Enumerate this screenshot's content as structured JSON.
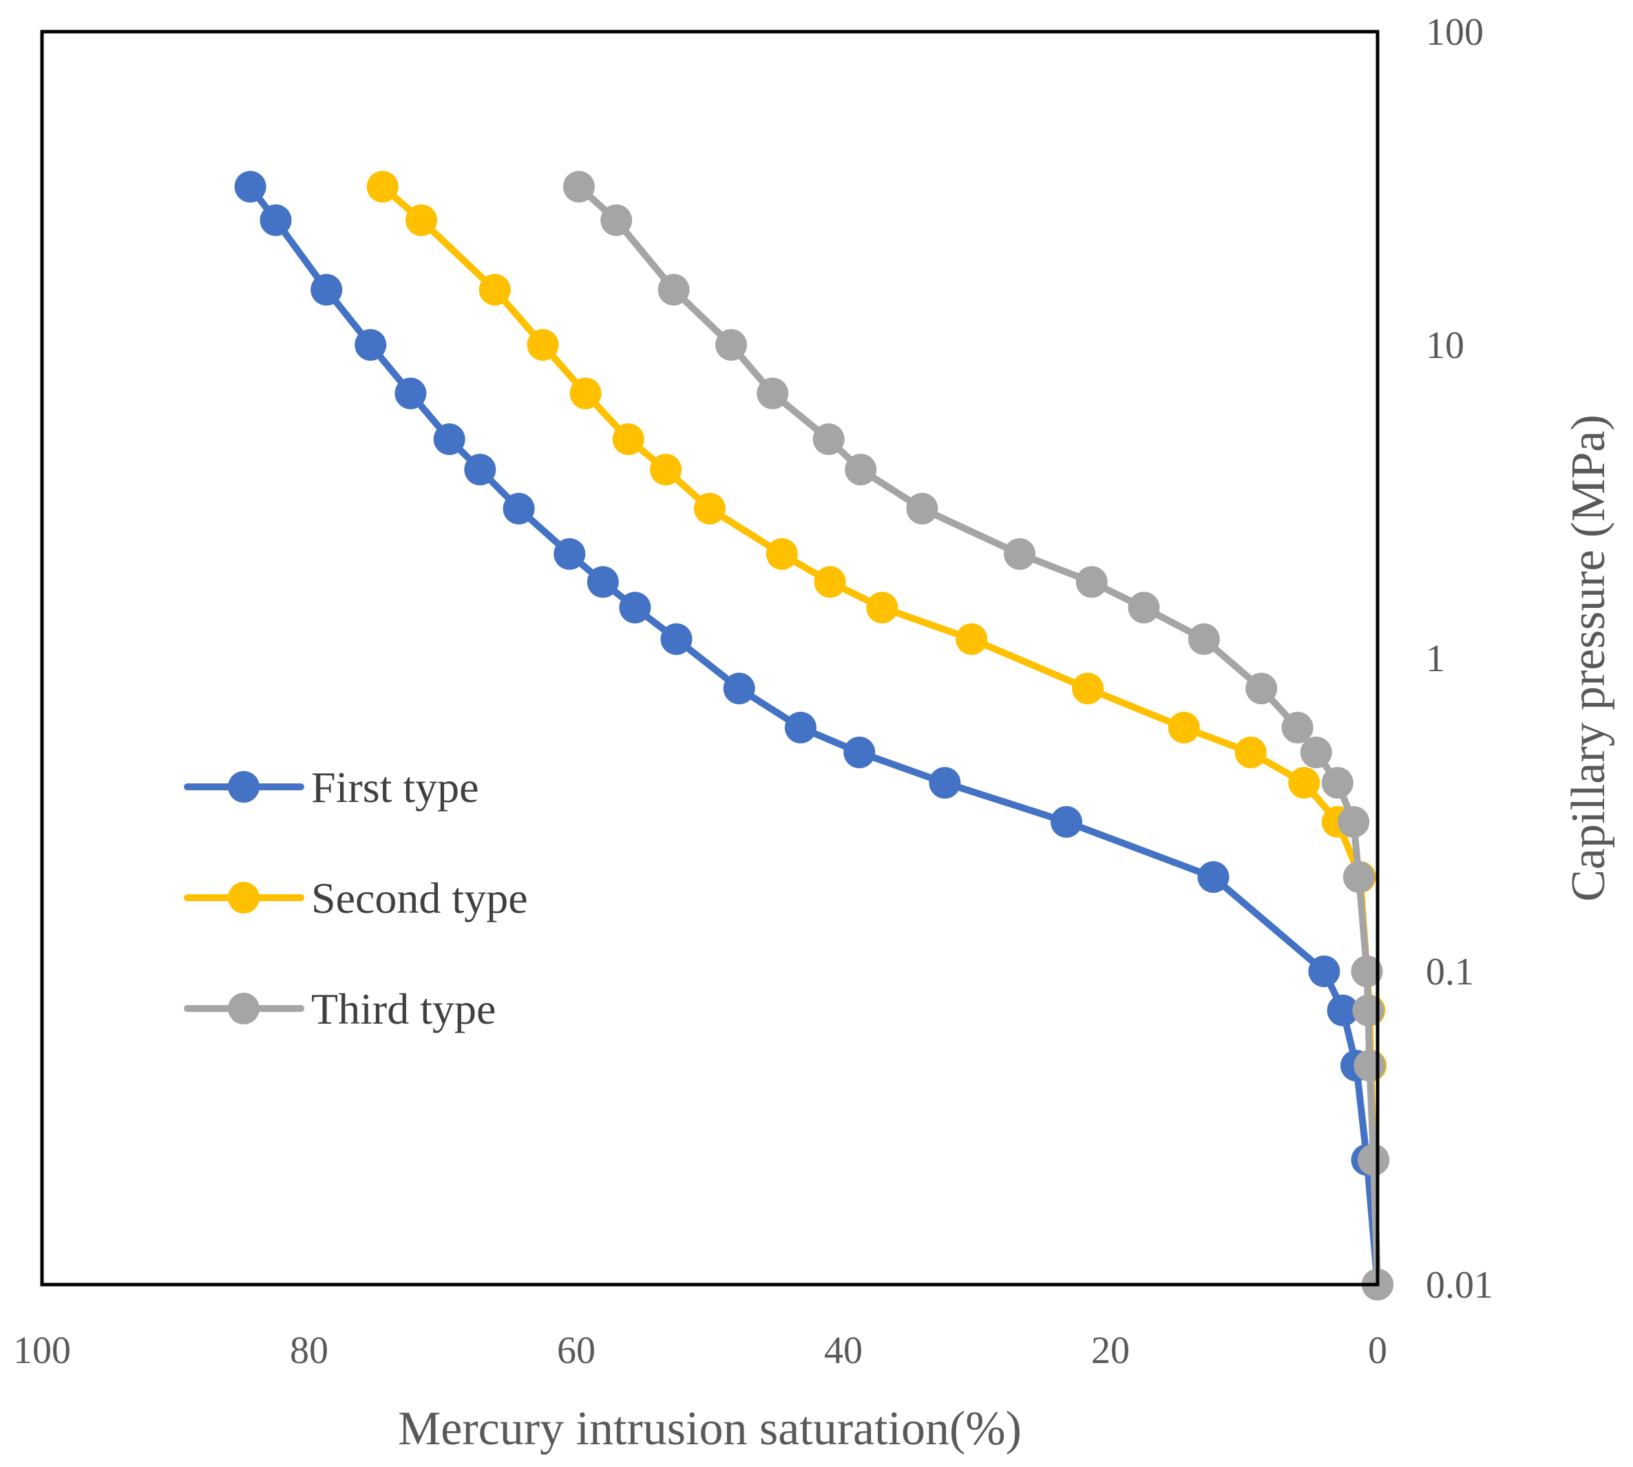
{
  "chart_data": {
    "type": "line",
    "xlabel": "Mercury intrusion saturation(%)",
    "ylabel": "Capillary pressure (MPa)",
    "x_reversed": true,
    "xlim": [
      0,
      100
    ],
    "y_scale": "log",
    "ylim": [
      0.01,
      100
    ],
    "x_ticks": [
      "100",
      "80",
      "60",
      "40",
      "20",
      "0"
    ],
    "y_ticks": [
      "0.01",
      "0.1",
      "1",
      "10",
      "100"
    ],
    "legend_position": "left-middle",
    "grid": false,
    "series": [
      {
        "name": "First type",
        "color": "#4472C4",
        "points": [
          [
            0,
            0.01
          ],
          [
            0.8,
            0.025
          ],
          [
            1.6,
            0.05
          ],
          [
            2.6,
            0.075
          ],
          [
            4,
            0.1
          ],
          [
            12.3,
            0.2
          ],
          [
            23.3,
            0.3
          ],
          [
            32.4,
            0.4
          ],
          [
            38.8,
            0.5
          ],
          [
            43.2,
            0.6
          ],
          [
            47.8,
            0.8
          ],
          [
            52.5,
            1.15
          ],
          [
            55.6,
            1.45
          ],
          [
            58.0,
            1.75
          ],
          [
            60.5,
            2.15
          ],
          [
            64.3,
            3.0
          ],
          [
            67.2,
            4.0
          ],
          [
            69.5,
            5.0
          ],
          [
            72.4,
            7.0
          ],
          [
            75.4,
            10.0
          ],
          [
            78.7,
            15.0
          ],
          [
            82.5,
            25.0
          ],
          [
            84.4,
            32.0
          ]
        ]
      },
      {
        "name": "Second type",
        "color": "#FFC000",
        "points": [
          [
            0,
            0.01
          ],
          [
            0.3,
            0.025
          ],
          [
            0.5,
            0.05
          ],
          [
            0.6,
            0.075
          ],
          [
            0.8,
            0.1
          ],
          [
            1.3,
            0.2
          ],
          [
            3.0,
            0.3
          ],
          [
            5.5,
            0.4
          ],
          [
            9.5,
            0.5
          ],
          [
            14.5,
            0.6
          ],
          [
            21.7,
            0.8
          ],
          [
            30.4,
            1.15
          ],
          [
            37.1,
            1.45
          ],
          [
            41.0,
            1.75
          ],
          [
            44.6,
            2.15
          ],
          [
            50.0,
            3.0
          ],
          [
            53.3,
            4.0
          ],
          [
            56.1,
            5.0
          ],
          [
            59.3,
            7.0
          ],
          [
            62.5,
            10.0
          ],
          [
            66.1,
            15.0
          ],
          [
            71.6,
            25.0
          ],
          [
            74.5,
            32.0
          ]
        ]
      },
      {
        "name": "Third type",
        "color": "#A5A5A5",
        "points": [
          [
            0,
            0.01
          ],
          [
            0.3,
            0.025
          ],
          [
            0.6,
            0.05
          ],
          [
            0.7,
            0.075
          ],
          [
            0.8,
            0.1
          ],
          [
            1.4,
            0.2
          ],
          [
            1.8,
            0.3
          ],
          [
            3.0,
            0.4
          ],
          [
            4.6,
            0.5
          ],
          [
            6.0,
            0.6
          ],
          [
            8.7,
            0.8
          ],
          [
            13.0,
            1.15
          ],
          [
            17.5,
            1.45
          ],
          [
            21.4,
            1.75
          ],
          [
            26.8,
            2.15
          ],
          [
            34.1,
            3.0
          ],
          [
            38.7,
            4.0
          ],
          [
            41.1,
            5.0
          ],
          [
            45.3,
            7.0
          ],
          [
            48.4,
            10.0
          ],
          [
            52.7,
            15.0
          ],
          [
            57.0,
            25.0
          ],
          [
            59.8,
            32.0
          ]
        ]
      }
    ]
  }
}
